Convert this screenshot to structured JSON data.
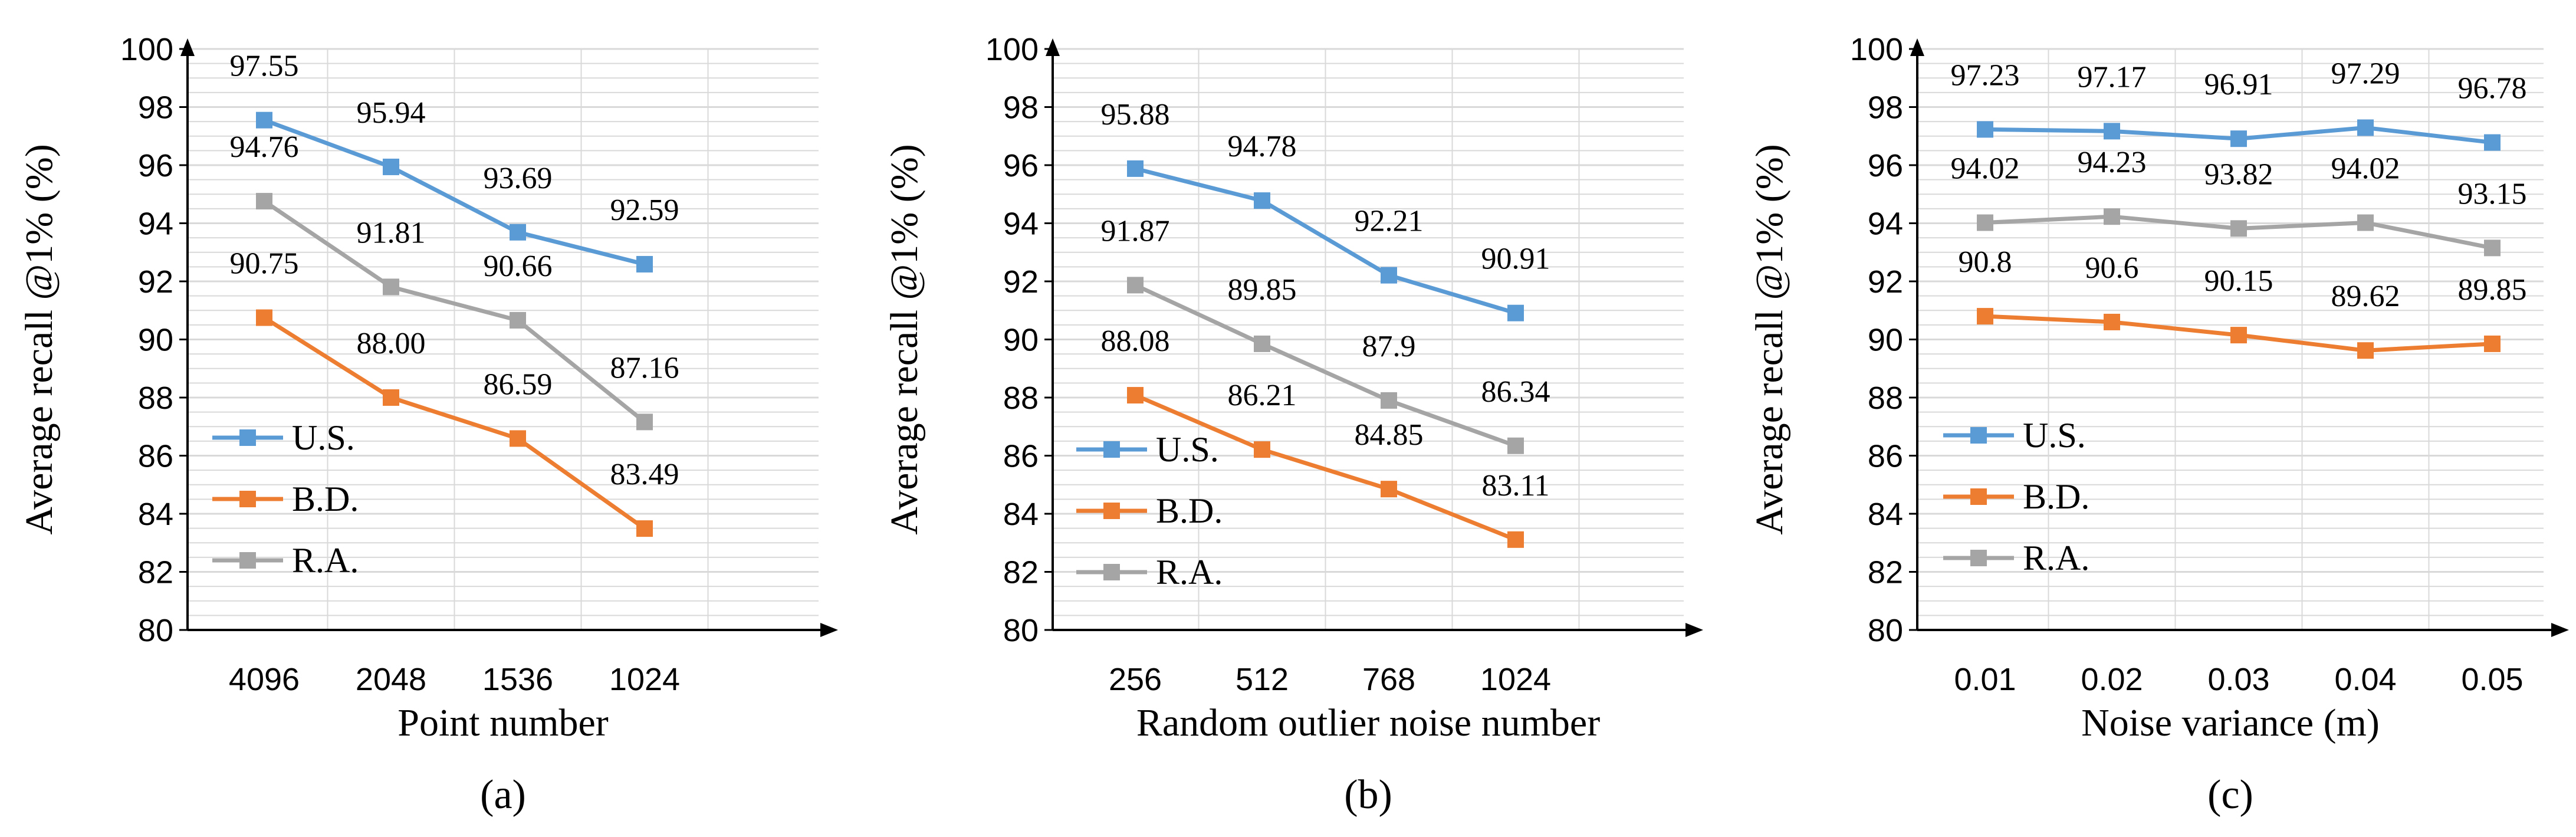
{
  "colors": {
    "U.S.": "#5b9bd5",
    "B.D.": "#ed7d31",
    "R.A.": "#a5a5a5",
    "grid": "#d9d9d9",
    "axis": "#000000"
  },
  "chart_data": [
    {
      "type": "line",
      "caption": "(a)",
      "xlabel": "Point number",
      "ylabel": "Average recall @1% (%)",
      "ylim": [
        80,
        100
      ],
      "ytick_step": 2,
      "categories": [
        "4096",
        "2048",
        "1536",
        "1024"
      ],
      "series": [
        {
          "name": "U.S.",
          "values": [
            97.55,
            95.94,
            93.69,
            92.59
          ],
          "labels": [
            "97.55",
            "95.94",
            "93.69",
            "92.59"
          ]
        },
        {
          "name": "B.D.",
          "values": [
            90.75,
            88.0,
            86.59,
            83.49
          ],
          "labels": [
            "90.75",
            "88.00",
            "86.59",
            "83.49"
          ]
        },
        {
          "name": "R.A.",
          "values": [
            94.76,
            91.81,
            90.66,
            87.16
          ],
          "labels": [
            "94.76",
            "91.81",
            "90.66",
            "87.16"
          ]
        }
      ],
      "legend": [
        "U.S.",
        "B.D.",
        "R.A."
      ],
      "legend_position": "bottom-left",
      "grid": true
    },
    {
      "type": "line",
      "caption": "(b)",
      "xlabel": "Random outlier noise number",
      "ylabel": "Average recall @1% (%)",
      "ylim": [
        80,
        100
      ],
      "ytick_step": 2,
      "categories": [
        "256",
        "512",
        "768",
        "1024"
      ],
      "series": [
        {
          "name": "U.S.",
          "values": [
            95.88,
            94.78,
            92.21,
            90.91
          ],
          "labels": [
            "95.88",
            "94.78",
            "92.21",
            "90.91"
          ]
        },
        {
          "name": "B.D.",
          "values": [
            88.08,
            86.21,
            84.85,
            83.11
          ],
          "labels": [
            "88.08",
            "86.21",
            "84.85",
            "83.11"
          ]
        },
        {
          "name": "R.A.",
          "values": [
            91.87,
            89.85,
            87.9,
            86.34
          ],
          "labels": [
            "91.87",
            "89.85",
            "87.9",
            "86.34"
          ]
        }
      ],
      "legend": [
        "U.S.",
        "B.D.",
        "R.A."
      ],
      "legend_position": "bottom-left",
      "grid": true
    },
    {
      "type": "line",
      "caption": "(c)",
      "xlabel": "Noise variance (m)",
      "ylabel": "Average recall @1% (%)",
      "ylim": [
        80,
        100
      ],
      "ytick_step": 2,
      "categories": [
        "0.01",
        "0.02",
        "0.03",
        "0.04",
        "0.05"
      ],
      "series": [
        {
          "name": "U.S.",
          "values": [
            97.23,
            97.17,
            96.91,
            97.29,
            96.78
          ],
          "labels": [
            "97.23",
            "97.17",
            "96.91",
            "97.29",
            "96.78"
          ]
        },
        {
          "name": "B.D.",
          "values": [
            90.8,
            90.6,
            90.15,
            89.62,
            89.85
          ],
          "labels": [
            "90.8",
            "90.6",
            "90.15",
            "89.62",
            "89.85"
          ]
        },
        {
          "name": "R.A.",
          "values": [
            94.02,
            94.23,
            93.82,
            94.02,
            93.15
          ],
          "labels": [
            "94.02",
            "94.23",
            "93.82",
            "94.02",
            "93.15"
          ]
        }
      ],
      "legend": [
        "U.S.",
        "B.D.",
        "R.A."
      ],
      "legend_position": "bottom-left",
      "grid": true
    }
  ]
}
